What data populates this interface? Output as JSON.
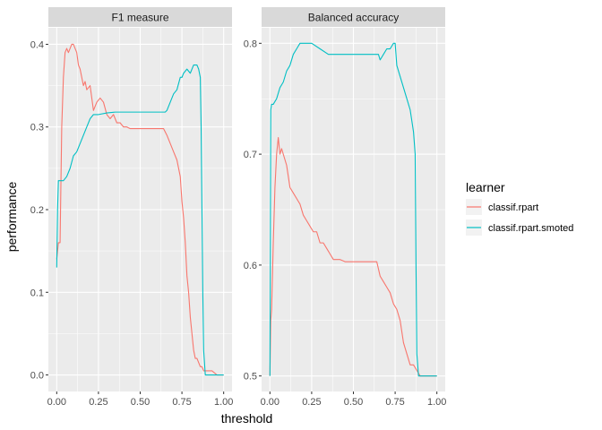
{
  "chart_data": {
    "type": "line",
    "xlabel": "threshold",
    "ylabel": "performance",
    "legend_title": "learner",
    "legend_position": "right",
    "grid": true,
    "colors": {
      "classif.rpart": "#F8766D",
      "classif.rpart.smoted": "#00BFC4",
      "panel_bg": "#EBEBEB",
      "strip_bg": "#D9D9D9",
      "grid": "#FFFFFF"
    },
    "legend": [
      "classif.rpart",
      "classif.rpart.smoted"
    ],
    "x_ticks": [
      "0.00",
      "0.25",
      "0.50",
      "0.75",
      "1.00"
    ],
    "panels": [
      {
        "title": "F1 measure",
        "ylim": [
          -0.02,
          0.42
        ],
        "y_ticks": [
          "0.0",
          "0.1",
          "0.2",
          "0.3",
          "0.4"
        ],
        "series": [
          {
            "name": "classif.rpart",
            "x": [
              0.0,
              0.01,
              0.02,
              0.03,
              0.04,
              0.05,
              0.06,
              0.07,
              0.08,
              0.09,
              0.1,
              0.11,
              0.12,
              0.13,
              0.14,
              0.15,
              0.16,
              0.17,
              0.18,
              0.2,
              0.22,
              0.24,
              0.26,
              0.28,
              0.3,
              0.32,
              0.34,
              0.36,
              0.38,
              0.4,
              0.42,
              0.44,
              0.48,
              0.52,
              0.56,
              0.6,
              0.64,
              0.66,
              0.68,
              0.7,
              0.72,
              0.74,
              0.75,
              0.76,
              0.77,
              0.78,
              0.79,
              0.8,
              0.81,
              0.82,
              0.83,
              0.84,
              0.85,
              0.86,
              0.87,
              0.88,
              0.9,
              0.93,
              0.96,
              1.0
            ],
            "y": [
              0.14,
              0.16,
              0.16,
              0.3,
              0.36,
              0.39,
              0.395,
              0.39,
              0.395,
              0.4,
              0.4,
              0.395,
              0.39,
              0.375,
              0.37,
              0.36,
              0.35,
              0.355,
              0.345,
              0.35,
              0.32,
              0.33,
              0.335,
              0.33,
              0.315,
              0.31,
              0.315,
              0.305,
              0.305,
              0.3,
              0.3,
              0.298,
              0.298,
              0.298,
              0.298,
              0.298,
              0.298,
              0.29,
              0.28,
              0.27,
              0.26,
              0.24,
              0.21,
              0.19,
              0.16,
              0.12,
              0.1,
              0.07,
              0.05,
              0.03,
              0.02,
              0.02,
              0.015,
              0.01,
              0.01,
              0.005,
              0.005,
              0.005,
              0.0,
              0.0
            ]
          },
          {
            "name": "classif.rpart.smoted",
            "x": [
              0.0,
              0.005,
              0.01,
              0.02,
              0.04,
              0.06,
              0.08,
              0.1,
              0.12,
              0.14,
              0.16,
              0.18,
              0.2,
              0.22,
              0.25,
              0.3,
              0.35,
              0.4,
              0.5,
              0.6,
              0.65,
              0.66,
              0.68,
              0.7,
              0.72,
              0.74,
              0.75,
              0.76,
              0.78,
              0.8,
              0.82,
              0.84,
              0.85,
              0.86,
              0.865,
              0.87,
              0.875,
              0.88,
              0.89,
              0.9,
              0.93,
              0.96,
              1.0
            ],
            "y": [
              0.13,
              0.2,
              0.235,
              0.235,
              0.235,
              0.24,
              0.25,
              0.265,
              0.27,
              0.28,
              0.29,
              0.3,
              0.31,
              0.315,
              0.315,
              0.317,
              0.318,
              0.318,
              0.318,
              0.318,
              0.318,
              0.32,
              0.33,
              0.34,
              0.345,
              0.36,
              0.36,
              0.365,
              0.37,
              0.365,
              0.375,
              0.375,
              0.37,
              0.36,
              0.3,
              0.2,
              0.1,
              0.03,
              0.0,
              0.0,
              0.0,
              0.0,
              0.0
            ]
          }
        ]
      },
      {
        "title": "Balanced accuracy",
        "ylim": [
          0.486,
          0.814
        ],
        "y_ticks": [
          "0.5",
          "0.6",
          "0.7",
          "0.8"
        ],
        "series": [
          {
            "name": "classif.rpart",
            "x": [
              0.0,
              0.005,
              0.01,
              0.02,
              0.03,
              0.04,
              0.05,
              0.06,
              0.07,
              0.08,
              0.1,
              0.12,
              0.14,
              0.16,
              0.18,
              0.2,
              0.22,
              0.24,
              0.26,
              0.28,
              0.3,
              0.32,
              0.34,
              0.36,
              0.38,
              0.4,
              0.42,
              0.45,
              0.5,
              0.55,
              0.6,
              0.64,
              0.66,
              0.68,
              0.7,
              0.72,
              0.74,
              0.76,
              0.78,
              0.8,
              0.82,
              0.84,
              0.86,
              0.88,
              0.9,
              0.95,
              1.0
            ],
            "y": [
              0.5,
              0.55,
              0.56,
              0.62,
              0.67,
              0.7,
              0.715,
              0.7,
              0.705,
              0.7,
              0.69,
              0.67,
              0.665,
              0.66,
              0.655,
              0.645,
              0.64,
              0.635,
              0.63,
              0.63,
              0.62,
              0.62,
              0.615,
              0.61,
              0.605,
              0.605,
              0.605,
              0.603,
              0.603,
              0.603,
              0.603,
              0.603,
              0.59,
              0.585,
              0.58,
              0.575,
              0.565,
              0.56,
              0.55,
              0.53,
              0.52,
              0.51,
              0.51,
              0.505,
              0.5,
              0.5,
              0.5
            ]
          },
          {
            "name": "classif.rpart.smoted",
            "x": [
              0.0,
              0.005,
              0.01,
              0.02,
              0.04,
              0.06,
              0.08,
              0.1,
              0.12,
              0.14,
              0.16,
              0.18,
              0.2,
              0.22,
              0.25,
              0.3,
              0.35,
              0.4,
              0.5,
              0.6,
              0.65,
              0.66,
              0.68,
              0.7,
              0.72,
              0.74,
              0.75,
              0.76,
              0.78,
              0.8,
              0.82,
              0.84,
              0.85,
              0.86,
              0.87,
              0.875,
              0.88,
              0.89,
              0.9,
              0.95,
              1.0
            ],
            "y": [
              0.5,
              0.74,
              0.745,
              0.745,
              0.75,
              0.76,
              0.765,
              0.775,
              0.78,
              0.79,
              0.795,
              0.8,
              0.8,
              0.8,
              0.8,
              0.795,
              0.79,
              0.79,
              0.79,
              0.79,
              0.79,
              0.785,
              0.79,
              0.795,
              0.795,
              0.8,
              0.8,
              0.78,
              0.77,
              0.76,
              0.75,
              0.74,
              0.73,
              0.72,
              0.7,
              0.6,
              0.52,
              0.5,
              0.5,
              0.5,
              0.5
            ]
          }
        ]
      }
    ]
  }
}
